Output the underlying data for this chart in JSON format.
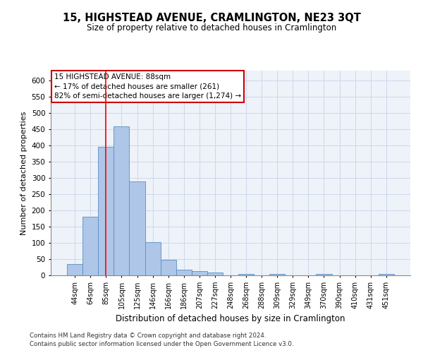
{
  "title": "15, HIGHSTEAD AVENUE, CRAMLINGTON, NE23 3QT",
  "subtitle": "Size of property relative to detached houses in Cramlington",
  "xlabel": "Distribution of detached houses by size in Cramlington",
  "ylabel": "Number of detached properties",
  "footnote1": "Contains HM Land Registry data © Crown copyright and database right 2024.",
  "footnote2": "Contains public sector information licensed under the Open Government Licence v3.0.",
  "categories": [
    "44sqm",
    "64sqm",
    "85sqm",
    "105sqm",
    "125sqm",
    "146sqm",
    "166sqm",
    "186sqm",
    "207sqm",
    "227sqm",
    "248sqm",
    "268sqm",
    "288sqm",
    "309sqm",
    "329sqm",
    "349sqm",
    "370sqm",
    "390sqm",
    "410sqm",
    "431sqm",
    "451sqm"
  ],
  "values": [
    35,
    180,
    395,
    458,
    288,
    102,
    48,
    18,
    13,
    8,
    0,
    5,
    0,
    5,
    0,
    0,
    5,
    0,
    0,
    0,
    5
  ],
  "bar_color": "#aec6e8",
  "bar_edge_color": "#5a8fc0",
  "grid_color": "#cdd8ea",
  "background_color": "#eef2f9",
  "red_line_x": 2,
  "annotation_text": "15 HIGHSTEAD AVENUE: 88sqm\n← 17% of detached houses are smaller (261)\n82% of semi-detached houses are larger (1,274) →",
  "annotation_box_color": "#ffffff",
  "annotation_box_edge": "#cc0000",
  "ylim": [
    0,
    630
  ],
  "yticks": [
    0,
    50,
    100,
    150,
    200,
    250,
    300,
    350,
    400,
    450,
    500,
    550,
    600
  ]
}
